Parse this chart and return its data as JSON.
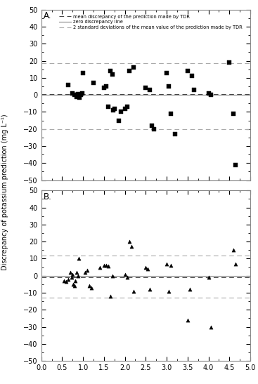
{
  "panel_A_label": "A.",
  "panel_B_label": "B.",
  "xlim": [
    0.0,
    5.0
  ],
  "ylim": [
    -50,
    50
  ],
  "xticks": [
    0.0,
    0.5,
    1.0,
    1.5,
    2.0,
    2.5,
    3.0,
    3.5,
    4.0,
    4.5,
    5.0
  ],
  "yticks": [
    -50,
    -40,
    -30,
    -20,
    -10,
    0,
    10,
    20,
    30,
    40,
    50
  ],
  "ylabel": "Discrepancy of potassium prediction (mg L⁻¹)",
  "legend_labels": [
    "mean discrepancy of the prediction made by TDR",
    "zero discrepancy line",
    "2 standard deviations of the mean value of the prediction made by TDR"
  ],
  "A_mean_val": 0.5,
  "A_std2_upper": 18.5,
  "A_std2_lower": -20.0,
  "B_mean_val": -1.0,
  "B_std2_upper": 12.0,
  "B_std2_lower": -13.0,
  "A_x": [
    0.65,
    0.75,
    0.8,
    0.85,
    0.88,
    0.9,
    0.92,
    0.95,
    0.98,
    1.0,
    1.25,
    1.5,
    1.55,
    1.6,
    1.65,
    1.7,
    1.72,
    1.75,
    1.85,
    1.9,
    2.0,
    2.05,
    2.1,
    2.2,
    2.5,
    2.6,
    2.65,
    2.7,
    3.0,
    3.05,
    3.1,
    3.2,
    3.5,
    3.6,
    3.65,
    4.0,
    4.05,
    4.5,
    4.6,
    4.65
  ],
  "A_y": [
    6.0,
    1.0,
    0.0,
    -1.0,
    0.5,
    0.0,
    -1.5,
    0.0,
    1.0,
    13.0,
    7.0,
    4.0,
    5.0,
    -7.0,
    14.0,
    12.0,
    -9.0,
    -8.0,
    -15.0,
    -10.0,
    -8.0,
    -7.0,
    14.0,
    16.0,
    4.0,
    3.0,
    -18.0,
    -20.0,
    13.0,
    5.0,
    -11.0,
    -23.0,
    14.0,
    11.0,
    3.0,
    1.0,
    0.0,
    19.0,
    -11.0,
    -41.0
  ],
  "B_x": [
    0.55,
    0.6,
    0.65,
    0.7,
    0.72,
    0.75,
    0.77,
    0.8,
    0.82,
    0.85,
    0.88,
    0.9,
    1.05,
    1.1,
    1.15,
    1.2,
    1.4,
    1.5,
    1.55,
    1.6,
    1.65,
    1.7,
    2.0,
    2.05,
    2.1,
    2.15,
    2.2,
    2.5,
    2.55,
    2.6,
    3.0,
    3.05,
    3.1,
    3.5,
    3.55,
    4.0,
    4.05,
    4.6,
    4.65
  ],
  "B_y": [
    -3.0,
    -3.5,
    -2.0,
    2.0,
    -1.0,
    0.5,
    -5.0,
    -6.0,
    -3.0,
    2.0,
    0.0,
    10.0,
    2.0,
    3.0,
    -6.0,
    -7.0,
    5.0,
    6.0,
    6.0,
    5.5,
    -12.0,
    0.0,
    0.5,
    -1.0,
    20.0,
    17.0,
    -9.0,
    5.0,
    4.0,
    -8.0,
    7.0,
    -9.0,
    6.0,
    -26.0,
    -8.0,
    -1.0,
    -30.0,
    15.0,
    7.0
  ],
  "marker_color": "black",
  "line_color_mean": "#444444",
  "line_color_zero": "#888888",
  "line_color_std2": "#aaaaaa",
  "bg_color": "white"
}
